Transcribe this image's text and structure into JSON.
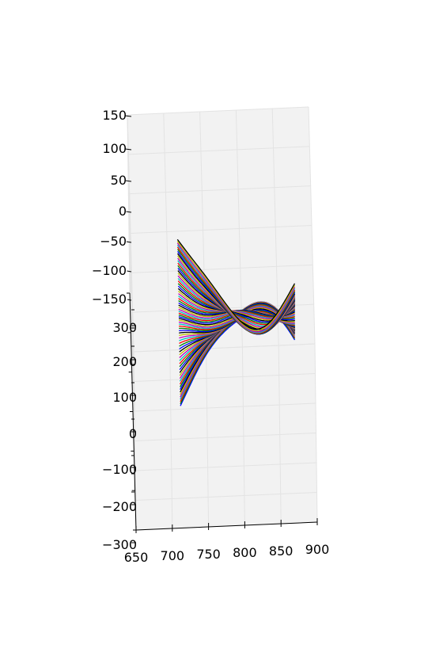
{
  "chart_data": {
    "type": "line",
    "projection": "3d",
    "title": "",
    "xlabel": "",
    "ylabel": "",
    "zlabel": "",
    "grid": true,
    "legend": "none",
    "pane_color": "#f2f2f2",
    "grid_color": "#e3e3e3",
    "x_ticks": [
      "650",
      "700",
      "750",
      "800",
      "850",
      "900"
    ],
    "y_ticks": [
      "−300",
      "−200",
      "−100",
      "0",
      "100",
      "200",
      "300"
    ],
    "z_ticks": [
      "−150",
      "−100",
      "−50",
      "0",
      "50",
      "100",
      "150"
    ],
    "xlim": [
      650,
      900
    ],
    "ylim": [
      -300,
      300
    ],
    "zlim": [
      -150,
      150
    ],
    "series_colors": [
      "#0000ff",
      "#008000",
      "#ff0000",
      "#00bfbf",
      "#bf00bf",
      "#bfbf00",
      "#000000"
    ],
    "curve_count": 70,
    "x_range": [
      715,
      875
    ],
    "y_range": [
      -190,
      190
    ],
    "z_amplitude_deg": [
      20,
      90
    ]
  }
}
